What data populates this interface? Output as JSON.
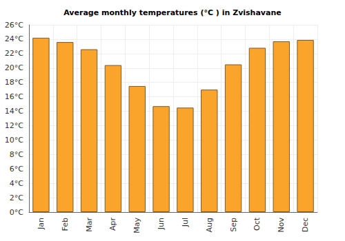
{
  "chart_data": {
    "type": "bar",
    "title": "Average monthly temperatures (°C ) in Zvishavane",
    "categories": [
      "Jan",
      "Feb",
      "Mar",
      "Apr",
      "May",
      "Jun",
      "Jul",
      "Aug",
      "Sep",
      "Oct",
      "Nov",
      "Dec"
    ],
    "values": [
      24.2,
      23.6,
      22.6,
      20.4,
      17.5,
      14.7,
      14.5,
      17.0,
      20.5,
      22.8,
      23.7,
      23.9
    ],
    "color": "#fba42c",
    "ylim": [
      0,
      26
    ],
    "yticks": [
      {
        "value": 0,
        "label": "0°C"
      },
      {
        "value": 2,
        "label": "2°C"
      },
      {
        "value": 4,
        "label": "4°C"
      },
      {
        "value": 6,
        "label": "6°C"
      },
      {
        "value": 8,
        "label": "8°C"
      },
      {
        "value": 10,
        "label": "10°C"
      },
      {
        "value": 12,
        "label": "12°C"
      },
      {
        "value": 14,
        "label": "14°C"
      },
      {
        "value": 16,
        "label": "16°C"
      },
      {
        "value": 18,
        "label": "18°C"
      },
      {
        "value": 20,
        "label": "20°C"
      },
      {
        "value": 22,
        "label": "22°C"
      },
      {
        "value": 24,
        "label": "24°C"
      },
      {
        "value": 26,
        "label": "26°C"
      }
    ],
    "grid": true
  }
}
